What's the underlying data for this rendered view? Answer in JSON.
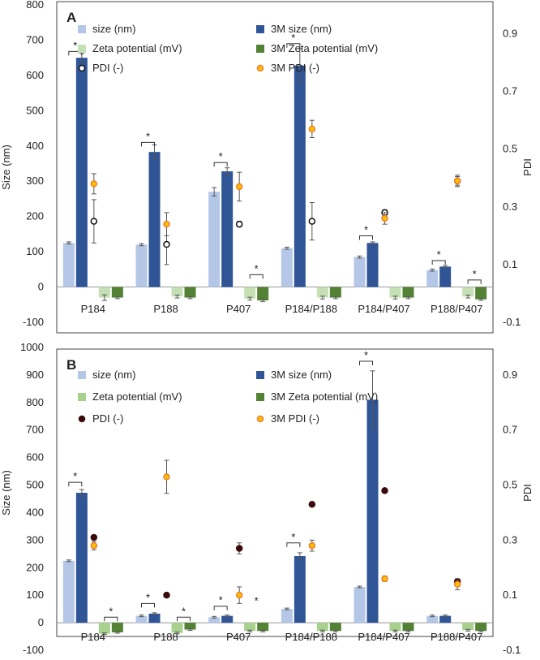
{
  "chart_data": [
    {
      "type": "bar",
      "panel_label": "A",
      "ylabel": "Size (nm)",
      "y2label": "PDI",
      "ylim": [
        -100,
        800
      ],
      "yticks": [
        -100,
        0,
        100,
        200,
        300,
        400,
        500,
        600,
        700,
        800
      ],
      "y2lim": [
        -0.1,
        1.0
      ],
      "y2ticks": [
        "-0.1",
        "0.1",
        "0.3",
        "0.5",
        "0.7",
        "0.9"
      ],
      "categories": [
        "P184",
        "P188",
        "P407",
        "P184/P188",
        "P184/P407",
        "P188/P407"
      ],
      "legend": [
        {
          "label": "size (nm)",
          "kind": "bar",
          "color": "#b4c7e7"
        },
        {
          "label": "3M size (nm)",
          "kind": "bar",
          "color": "#2f5597"
        },
        {
          "label": "Zeta potential (mV)",
          "kind": "bar",
          "color": "#c5e0b4"
        },
        {
          "label": "3M Zeta potential (mV)",
          "kind": "bar",
          "color": "#548235"
        },
        {
          "label": "PDI (-)",
          "kind": "marker",
          "fill": "#ffffff",
          "stroke": "#111111"
        },
        {
          "label": "3M PDI (-)",
          "kind": "marker",
          "fill": "#ffc000",
          "stroke": "#ed7d31"
        }
      ],
      "series": [
        {
          "name": "size (nm)",
          "axis": "left",
          "kind": "bar",
          "color": "#b4c7e7",
          "values": [
            125,
            120,
            270,
            110,
            85,
            48
          ],
          "errors": [
            3,
            3,
            12,
            3,
            3,
            3
          ]
        },
        {
          "name": "3M size (nm)",
          "axis": "left",
          "kind": "bar",
          "color": "#2f5597",
          "values": [
            650,
            383,
            328,
            628,
            125,
            58
          ],
          "errors": [
            12,
            20,
            10,
            48,
            3,
            3
          ]
        },
        {
          "name": "Zeta potential (mV)",
          "axis": "left",
          "kind": "bar",
          "color": "#c5e0b4",
          "values": [
            -30,
            -27,
            -33,
            -30,
            -30,
            -27
          ],
          "errors": [
            8,
            4,
            4,
            4,
            4,
            4
          ]
        },
        {
          "name": "3M Zeta potential (mV)",
          "axis": "left",
          "kind": "bar",
          "color": "#548235",
          "values": [
            -30,
            -30,
            -38,
            -30,
            -30,
            -35
          ],
          "errors": [
            3,
            3,
            3,
            3,
            3,
            3
          ]
        },
        {
          "name": "PDI (-)",
          "axis": "right",
          "kind": "marker",
          "fill": "#ffffff",
          "stroke": "#111111",
          "values": [
            0.25,
            0.17,
            0.24,
            0.25,
            0.28,
            0.39
          ],
          "errors": [
            0.075,
            0.07,
            0.01,
            0.065,
            0.01,
            0.015
          ]
        },
        {
          "name": "3M PDI (-)",
          "axis": "right",
          "kind": "marker",
          "fill": "#ffc000",
          "stroke": "#ed7d31",
          "values": [
            0.38,
            0.24,
            0.37,
            0.57,
            0.26,
            0.39
          ],
          "errors": [
            0.035,
            0.04,
            0.05,
            0.03,
            0.02,
            0.02
          ]
        }
      ],
      "significance": [
        {
          "category": 0,
          "from": 0,
          "to": 1,
          "at": 668,
          "label": "*"
        },
        {
          "category": 1,
          "from": 0,
          "to": 1,
          "at": 410,
          "label": "*"
        },
        {
          "category": 2,
          "from": 0,
          "to": 1,
          "at": 353,
          "label": "*"
        },
        {
          "category": 2,
          "from": 2,
          "to": 3,
          "at": 35,
          "label": "*"
        },
        {
          "category": 3,
          "from": 0,
          "to": 1,
          "at": 690,
          "label": "*"
        },
        {
          "category": 4,
          "from": 0,
          "to": 1,
          "at": 145,
          "label": "*"
        },
        {
          "category": 5,
          "from": 0,
          "to": 1,
          "at": 75,
          "label": "*"
        },
        {
          "category": 5,
          "from": 2,
          "to": 3,
          "at": 20,
          "label": "*"
        }
      ]
    },
    {
      "type": "bar",
      "panel_label": "B",
      "ylabel": "Size (nm)",
      "y2label": "PDI",
      "ylim": [
        -100,
        1000
      ],
      "yticks": [
        -100,
        0,
        100,
        200,
        300,
        400,
        500,
        600,
        700,
        800,
        900,
        1000
      ],
      "y2lim": [
        -0.1,
        1.0
      ],
      "y2ticks": [
        "-0.1",
        "0.1",
        "0.3",
        "0.5",
        "0.7",
        "0.9"
      ],
      "categories": [
        "P184",
        "P188",
        "P407",
        "P184/P188",
        "P184/P407",
        "P188/P407"
      ],
      "legend": [
        {
          "label": "size (nm)",
          "kind": "bar",
          "color": "#b4c7e7"
        },
        {
          "label": "3M size (nm)",
          "kind": "bar",
          "color": "#2f5597"
        },
        {
          "label": "Zeta potential (mV)",
          "kind": "bar",
          "color": "#a9d18e"
        },
        {
          "label": "3M Zeta potential (mV)",
          "kind": "bar",
          "color": "#548235"
        },
        {
          "label": "PDI (-)",
          "kind": "marker",
          "fill": "#3a0a0a",
          "stroke": "#3a0a0a"
        },
        {
          "label": "3M PDI (-)",
          "kind": "marker",
          "fill": "#ffc000",
          "stroke": "#ed7d31"
        }
      ],
      "series": [
        {
          "name": "size (nm)",
          "axis": "left",
          "kind": "bar",
          "color": "#b4c7e7",
          "values": [
            225,
            25,
            20,
            50,
            130,
            25
          ],
          "errors": [
            3,
            3,
            3,
            3,
            3,
            3
          ]
        },
        {
          "name": "3M size (nm)",
          "axis": "left",
          "kind": "bar",
          "color": "#2f5597",
          "values": [
            472,
            33,
            25,
            242,
            810,
            25
          ],
          "errors": [
            12,
            3,
            3,
            12,
            105,
            3
          ]
        },
        {
          "name": "Zeta potential (mV)",
          "axis": "left",
          "kind": "bar",
          "color": "#a9d18e",
          "values": [
            -40,
            -37,
            -30,
            -30,
            -30,
            -27
          ],
          "errors": [
            3,
            3,
            3,
            3,
            3,
            3
          ]
        },
        {
          "name": "3M Zeta potential (mV)",
          "axis": "left",
          "kind": "bar",
          "color": "#548235",
          "values": [
            -35,
            -25,
            -30,
            -30,
            -30,
            -30
          ],
          "errors": [
            3,
            3,
            3,
            3,
            3,
            3
          ]
        },
        {
          "name": "PDI (-)",
          "axis": "right",
          "kind": "marker",
          "fill": "#3a0a0a",
          "stroke": "#3a0a0a",
          "values": [
            0.31,
            0.1,
            0.27,
            0.43,
            0.48,
            0.15
          ],
          "errors": [
            0,
            0,
            0.02,
            0,
            0,
            0
          ]
        },
        {
          "name": "3M PDI (-)",
          "axis": "right",
          "kind": "marker",
          "fill": "#ffc000",
          "stroke": "#ed7d31",
          "values": [
            0.28,
            0.53,
            0.1,
            0.28,
            0.16,
            0.14
          ],
          "errors": [
            0.015,
            0.06,
            0.03,
            0.02,
            0.01,
            0.02
          ]
        }
      ],
      "significance": [
        {
          "category": 0,
          "from": 0,
          "to": 1,
          "at": 510,
          "label": "*"
        },
        {
          "category": 0,
          "from": 2,
          "to": 3,
          "at": 20,
          "label": "*"
        },
        {
          "category": 1,
          "from": 0,
          "to": 1,
          "at": 70,
          "label": "*"
        },
        {
          "category": 1,
          "from": 2,
          "to": 3,
          "at": 20,
          "label": "*"
        },
        {
          "category": 2,
          "from": 0,
          "to": 1,
          "at": 60,
          "label": "*"
        },
        {
          "category": 2,
          "from": 2,
          "to": 3,
          "at": 58,
          "label": "*",
          "bracket": false
        },
        {
          "category": 3,
          "from": 0,
          "to": 1,
          "at": 290,
          "label": "*"
        },
        {
          "category": 4,
          "from": 0,
          "to": 1,
          "at": 950,
          "label": "*"
        }
      ]
    }
  ]
}
